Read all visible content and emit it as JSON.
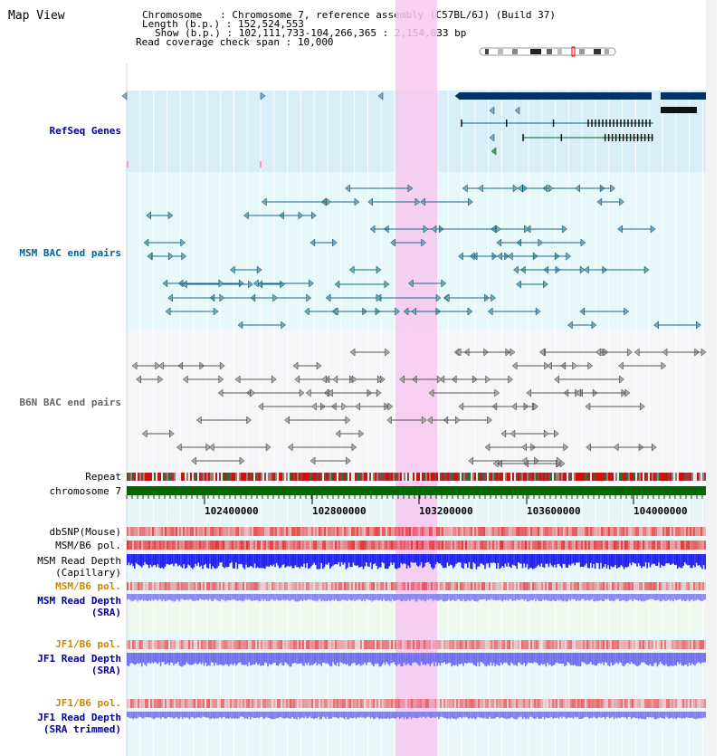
{
  "title": "Map View",
  "info": {
    "chromosome_label": "Chromosome",
    "chromosome_value": ": Chromosome 7, reference assembly (C57BL/6J) (Build 37)",
    "length_label": "Length (b.p.)",
    "length_value": ": 152,524,553",
    "show_label": "Show (b.p.)",
    "show_value": ": 102,111,733-104,266,365 : 2,154,633 bp",
    "coverage_label": "Read coverage check span",
    "coverage_value": ": 10,000"
  },
  "tracks": {
    "refseq": "RefSeq Genes",
    "msm_bac": "MSM BAC end pairs",
    "b6n_bac": "B6N BAC end pairs",
    "repeat": "Repeat",
    "chromosome": "chromosome 7",
    "dbsnp": "dbSNP(Mouse)",
    "msm_b6_pol": "MSM/B6 pol.",
    "msm_depth_cap_1": "MSM Read Depth",
    "msm_depth_cap_2": "(Capillary)",
    "msm_b6_pol_2": "MSM/B6 pol.",
    "msm_depth_sra_1": "MSM Read Depth",
    "msm_depth_sra_2": "(SRA)",
    "jf1_b6_pol": "JF1/B6 pol.",
    "jf1_depth_1": "JF1 Read Depth",
    "jf1_depth_2": "(SRA)",
    "jf1_b6_pol_2": "JF1/B6 pol.",
    "jf1_trim_1": "JF1 Read Depth",
    "jf1_trim_2": "(SRA trimmed)"
  },
  "axis_ticks": [
    "102400000",
    "102800000",
    "103200000",
    "103600000",
    "104000000"
  ],
  "colors": {
    "refseq_label": "#000099",
    "msm_bac_label": "#006699",
    "b6n_bac_label": "#666666",
    "pol_orange": "#cc8800",
    "depth_blue": "#000099",
    "highlight": "#f7c8f0",
    "chromosome_bar": "#006600"
  }
}
